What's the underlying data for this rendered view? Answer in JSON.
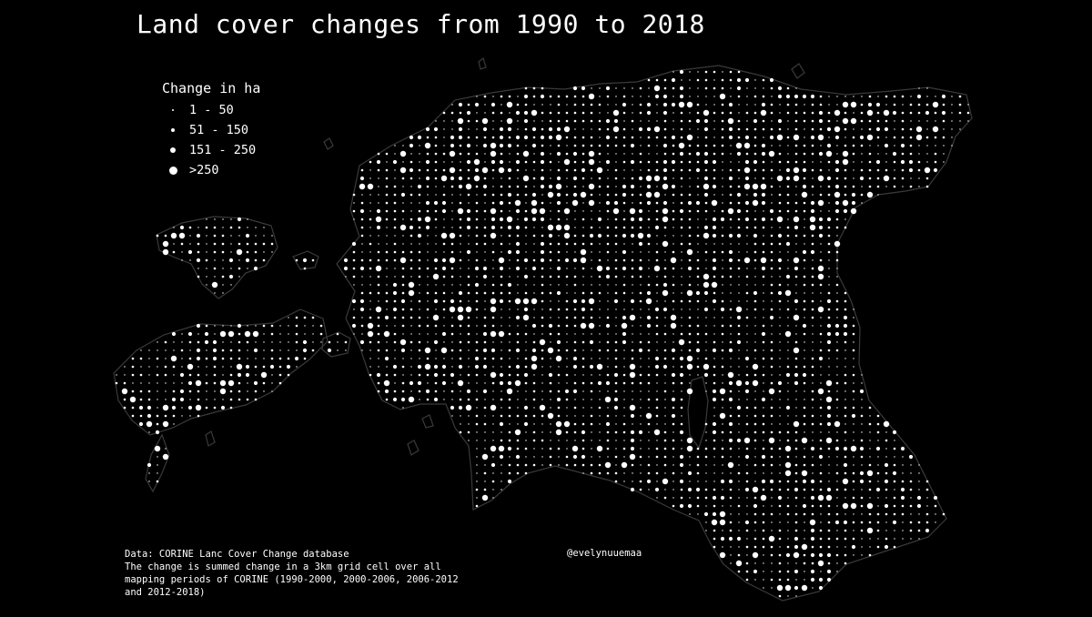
{
  "title": "Land cover changes from 1990 to 2018",
  "legend": {
    "title": "Change in ha",
    "items": [
      {
        "label": "1 - 50",
        "size_class": 1
      },
      {
        "label": "51 - 150",
        "size_class": 2
      },
      {
        "label": "151 - 250",
        "size_class": 3
      },
      {
        "label": ">250",
        "size_class": 4
      }
    ]
  },
  "notes": {
    "line1": "Data: CORINE Lanc Cover Change database",
    "line2": "The change is summed change in a 3km grid cell over all",
    "line3": "mapping periods of CORINE (1990-2000, 2000-2006, 2006-2012",
    "line4": "and 2012-2018)"
  },
  "credit": "@evelynuuemaa",
  "colors": {
    "background": "#000000",
    "dots": "#ffffff",
    "outline": "#3a3a3a"
  }
}
